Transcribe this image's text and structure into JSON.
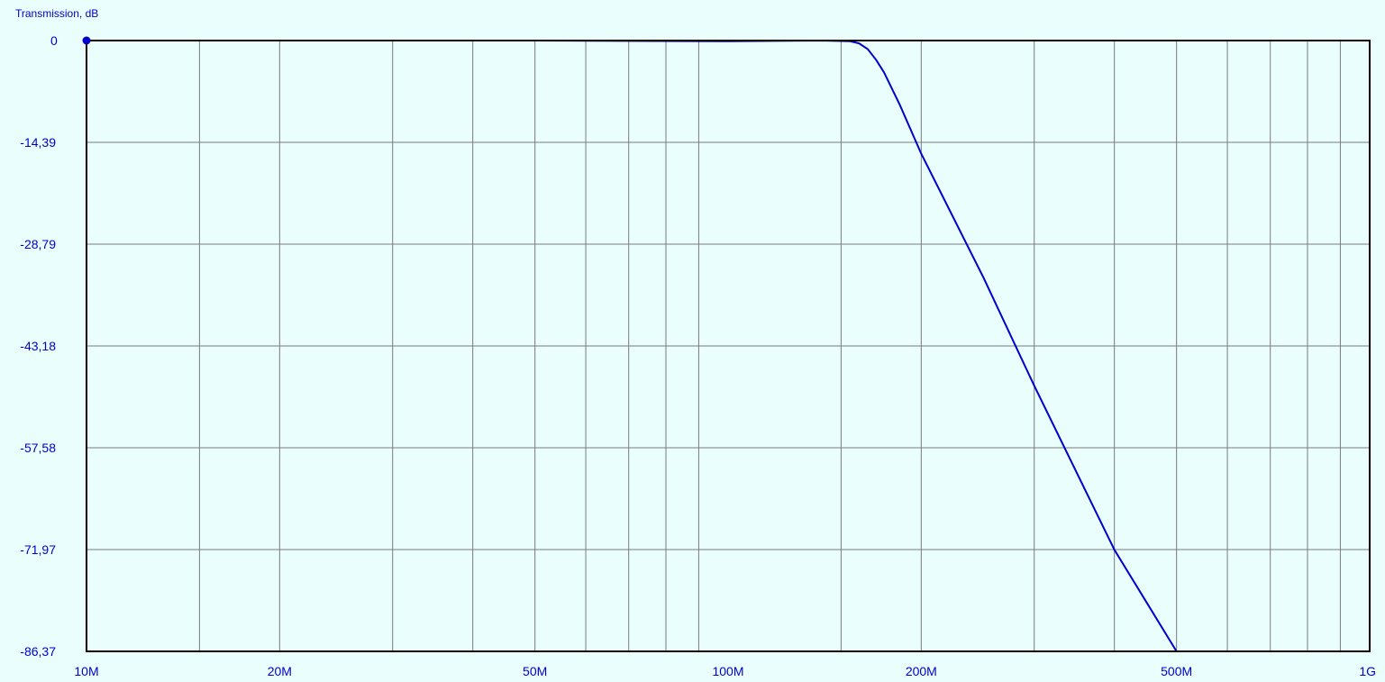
{
  "chart_data": {
    "type": "line",
    "ylabel": "Transmission, dB",
    "xlabel": "",
    "x_scale": "log",
    "xlim": [
      10000000,
      1000000000
    ],
    "ylim": [
      -86.37,
      0
    ],
    "grid": true,
    "x_ticks": [
      {
        "value": 10000000,
        "label": "10M"
      },
      {
        "value": 20000000,
        "label": "20M"
      },
      {
        "value": 50000000,
        "label": "50M"
      },
      {
        "value": 100000000,
        "label": "100M"
      },
      {
        "value": 200000000,
        "label": "200M"
      },
      {
        "value": 500000000,
        "label": "500M"
      },
      {
        "value": 1000000000,
        "label": "1G"
      }
    ],
    "x_minor_grid": [
      15000000,
      20000000,
      30000000,
      40000000,
      50000000,
      60000000,
      70000000,
      80000000,
      90000000,
      150000000,
      200000000,
      300000000,
      400000000,
      500000000,
      600000000,
      700000000,
      800000000,
      900000000
    ],
    "y_ticks": [
      {
        "value": 0,
        "label": "0"
      },
      {
        "value": -14.39,
        "label": "-14,39"
      },
      {
        "value": -28.79,
        "label": "-28,79"
      },
      {
        "value": -43.18,
        "label": "-43,18"
      },
      {
        "value": -57.58,
        "label": "-57,58"
      },
      {
        "value": -71.97,
        "label": "-71,97"
      },
      {
        "value": -86.37,
        "label": "-86,37"
      }
    ],
    "series": [
      {
        "color": "#0000cc",
        "x": [
          10000000,
          50000000,
          100000000,
          140000000,
          155000000,
          160000000,
          165000000,
          170000000,
          175000000,
          185000000,
          200000000,
          250000000,
          300000000,
          400000000,
          500000000,
          505000000,
          600000000,
          800000000,
          1000000000
        ],
        "y": [
          0,
          0,
          -0.1,
          0,
          -0.1,
          -0.4,
          -1.2,
          -2.7,
          -4.5,
          -9.0,
          -16.0,
          -33.5,
          -48.8,
          -72.0,
          -86.37,
          -86.37,
          -86.37,
          -86.37,
          -86.37
        ]
      }
    ],
    "markers": [
      {
        "x": 10000000,
        "y": 0,
        "color": "#0000cc"
      }
    ]
  }
}
